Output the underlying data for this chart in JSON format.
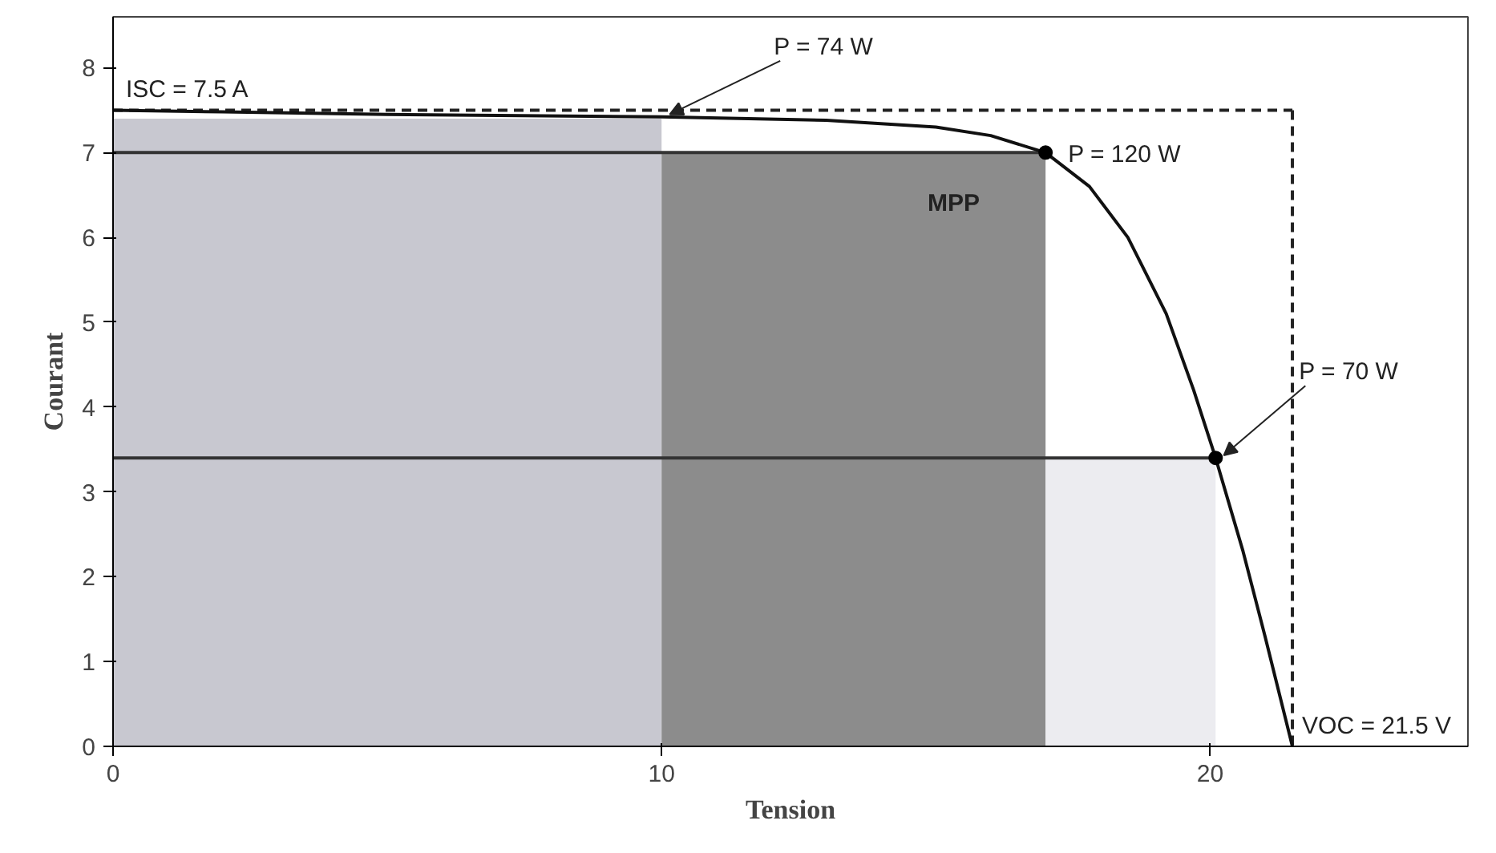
{
  "chart_data": {
    "type": "line",
    "xlabel": "Tension",
    "ylabel": "Courant",
    "xlim": [
      0,
      24.7
    ],
    "ylim": [
      0,
      8.6
    ],
    "xticks": [
      0,
      10,
      20
    ],
    "yticks": [
      0,
      1,
      2,
      3,
      4,
      5,
      6,
      7,
      8
    ],
    "grid": false,
    "series": [
      {
        "type": "area",
        "color": "#c8c8d0",
        "x": [
          0,
          10
        ],
        "values": [
          7.4,
          7.4
        ]
      },
      {
        "type": "area",
        "color": "#8c8c8c",
        "x": [
          10,
          17
        ],
        "values": [
          7.0,
          7.0
        ]
      },
      {
        "type": "area",
        "color": "#ececf0",
        "x": [
          17,
          20.1
        ],
        "values": [
          3.4,
          3.4
        ]
      },
      {
        "color": "#333333",
        "x": [
          0,
          17
        ],
        "values": [
          7.0,
          7.0
        ],
        "line_style": "solid"
      },
      {
        "color": "#333333",
        "x": [
          0,
          20.1
        ],
        "values": [
          3.4,
          3.4
        ],
        "line_style": "solid"
      },
      {
        "color": "#222222",
        "x": [
          0,
          21.5
        ],
        "values": [
          7.5,
          7.5
        ],
        "line_style": "dashed"
      },
      {
        "color": "#222222",
        "x": [
          21.5,
          21.5
        ],
        "values": [
          7.5,
          0
        ],
        "line_style": "dashed"
      },
      {
        "color": "#111111",
        "x": [
          0,
          2,
          5,
          10,
          13,
          15,
          16,
          17,
          17.8,
          18.5,
          19.2,
          19.7,
          20.1,
          20.6,
          21.0,
          21.5
        ],
        "values": [
          7.5,
          7.48,
          7.45,
          7.42,
          7.38,
          7.3,
          7.2,
          7.0,
          6.6,
          6.0,
          5.1,
          4.2,
          3.4,
          2.3,
          1.3,
          0
        ],
        "line_style": "solid"
      },
      {
        "type": "scatter",
        "color": "#000000",
        "marker": "circle",
        "x": [
          17,
          20.1
        ],
        "values": [
          7.0,
          3.4
        ]
      }
    ],
    "annotations": [
      {
        "text": "ISC = 7.5 A",
        "x": 0,
        "y": 7.5
      },
      {
        "text": "P = 74 W",
        "x": 10,
        "y": 7.42
      },
      {
        "text": "P = 120 W",
        "x": 17,
        "y": 7.0
      },
      {
        "text": "P = 70 W",
        "x": 20.1,
        "y": 3.4
      },
      {
        "text": "VOC = 21.5 V",
        "x": 21.5,
        "y": 0
      },
      "MPP"
    ]
  }
}
